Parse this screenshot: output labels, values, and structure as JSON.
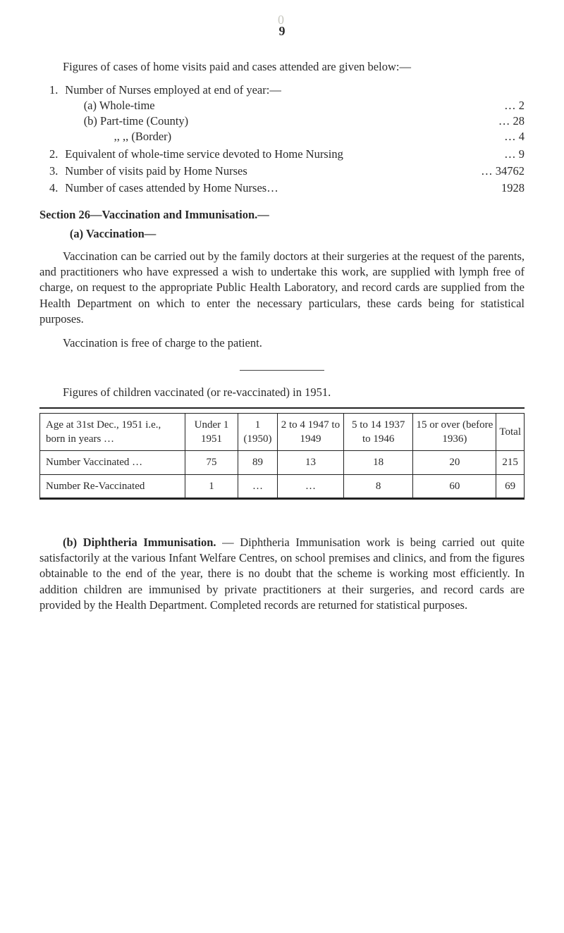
{
  "page_number": "9",
  "faint_mark": "0",
  "intro": "Figures of cases of home visits paid and cases attended are given below:—",
  "items": [
    {
      "num": "1.",
      "text": "Number of Nurses employed at end of year:—",
      "subs": [
        {
          "label": "(a) Whole-time",
          "value": "…   2",
          "indent": "a"
        },
        {
          "label": "(b) Part-time  (County)",
          "value": "…  28",
          "indent": "a"
        },
        {
          "label": "   ,,       ,,     (Border)",
          "value": "…   4",
          "indent": "q"
        }
      ]
    },
    {
      "num": "2.",
      "text": "Equivalent of whole-time service devoted to Home Nursing",
      "value": "…        9"
    },
    {
      "num": "3.",
      "text": "Number of visits paid by Home Nurses",
      "value": "…   34762"
    },
    {
      "num": "4.",
      "text": "Number of cases attended by Home Nurses…",
      "value": "1928"
    }
  ],
  "section_head": "Section 26—Vaccination and Immunisation.—",
  "sub_head": "(a)   Vaccination—",
  "para1": "Vaccination can be carried out by the family doctors at their surgeries at the request of the parents, and practitioners who have expressed a wish to undertake this work, are supplied with lymph free of charge, on request to the appropriate Public Health Laboratory, and record cards are supplied from the Health Department on which to enter the necessary particulars, these cards being for statistical purposes.",
  "para2": "Vaccination is free of charge to the patient.",
  "figcap": "Figures of children vaccinated (or re-vaccinated) in 1951.",
  "table": {
    "columns": [
      "Age at 31st Dec., 1951 i.e., born in years   …",
      "Under 1 1951",
      "1 (1950)",
      "2 to 4 1947 to 1949",
      "5 to 14 1937 to 1946",
      "15 or over (before 1936)",
      "Total"
    ],
    "rows": [
      [
        "Number Vaccinated   …",
        "75",
        "89",
        "13",
        "18",
        "20",
        "215"
      ],
      [
        "Number Re-Vaccinated",
        "1",
        "…",
        "…",
        "8",
        "60",
        "69"
      ]
    ],
    "col_widths": [
      "30%",
      "11%",
      "11%",
      "14%",
      "14%",
      "12%",
      "8%"
    ],
    "border_color": "#222222",
    "font_size": 15
  },
  "diph_head": "(b)  Diphtheria Immunisation.",
  "diph_body": " — Diphtheria Immunisation work is being carried out quite satisfactorily at the various Infant Welfare Centres, on school premises and clinics, and from the figures obtainable to the end of the year, there is no doubt that the scheme is working most efficiently. In addition children are immunised by private practitioners at their surgeries, and record cards are provided by the Health Department. Completed records are returned for statistical purposes.",
  "colors": {
    "bg": "#ffffff",
    "text": "#2a2a2a",
    "faint": "#c8c8c0",
    "rule": "#444444"
  }
}
